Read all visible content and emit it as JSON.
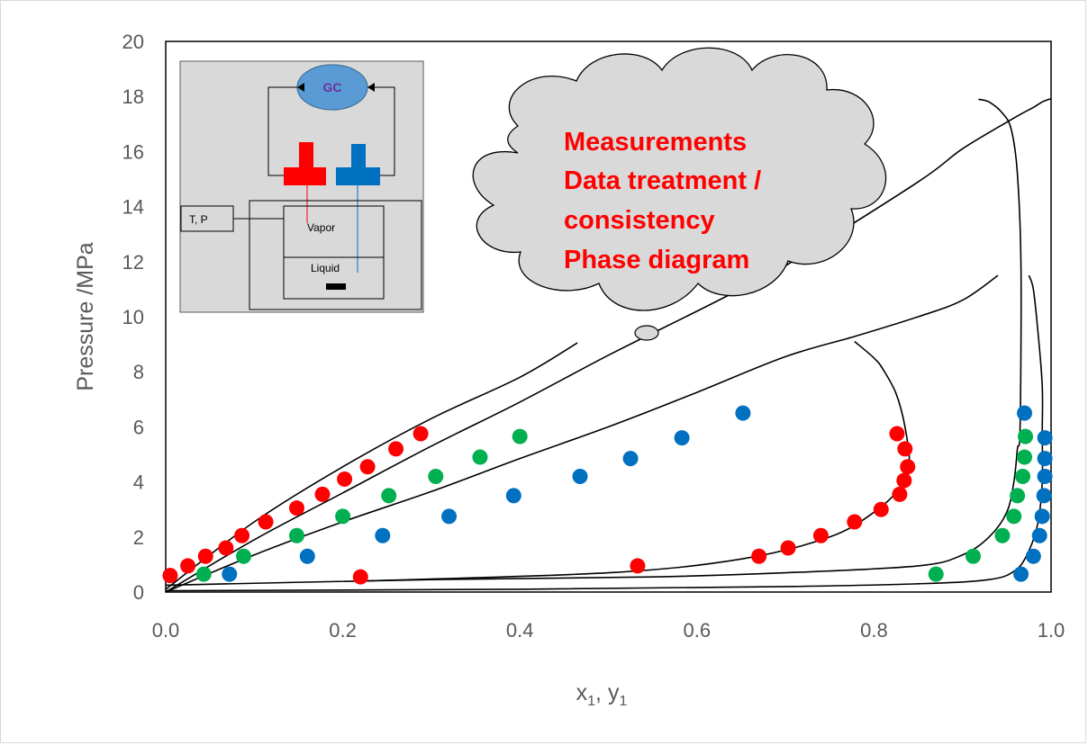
{
  "chart_data": {
    "type": "scatter",
    "title": "",
    "xlabel": "x",
    "xlabel_sub": "1",
    "xlabel_sep": ", y",
    "xlabel_sub2": "1",
    "ylabel": "Pressure /MPa",
    "xlim": [
      0,
      1
    ],
    "ylim": [
      0,
      20
    ],
    "xticks": [
      "0.0",
      "0.2",
      "0.4",
      "0.6",
      "0.8",
      "1.0"
    ],
    "yticks": [
      "0",
      "2",
      "4",
      "6",
      "8",
      "10",
      "12",
      "14",
      "16",
      "18",
      "20"
    ],
    "grid": false,
    "legend": "none",
    "colors": {
      "red": "#ff0000",
      "green": "#00b050",
      "blue": "#0070c0",
      "line": "#000000"
    },
    "series": [
      {
        "color": "red",
        "bubble": [
          [
            0.005,
            0.6
          ],
          [
            0.025,
            0.95
          ],
          [
            0.045,
            1.3
          ],
          [
            0.068,
            1.6
          ],
          [
            0.086,
            2.05
          ],
          [
            0.113,
            2.55
          ],
          [
            0.148,
            3.05
          ],
          [
            0.177,
            3.55
          ],
          [
            0.202,
            4.1
          ],
          [
            0.228,
            4.55
          ],
          [
            0.26,
            5.2
          ],
          [
            0.288,
            5.75
          ]
        ],
        "dew": [
          [
            0.22,
            0.55
          ],
          [
            0.533,
            0.95
          ],
          [
            0.67,
            1.3
          ],
          [
            0.703,
            1.6
          ],
          [
            0.74,
            2.05
          ],
          [
            0.778,
            2.55
          ],
          [
            0.808,
            3.0
          ],
          [
            0.829,
            3.55
          ],
          [
            0.834,
            4.05
          ],
          [
            0.838,
            4.55
          ],
          [
            0.835,
            5.2
          ],
          [
            0.826,
            5.75
          ]
        ]
      },
      {
        "color": "green",
        "bubble": [
          [
            0.043,
            0.65
          ],
          [
            0.088,
            1.3
          ],
          [
            0.148,
            2.05
          ],
          [
            0.2,
            2.75
          ],
          [
            0.252,
            3.5
          ],
          [
            0.305,
            4.2
          ],
          [
            0.355,
            4.9
          ],
          [
            0.4,
            5.65
          ]
        ],
        "dew": [
          [
            0.87,
            0.65
          ],
          [
            0.912,
            1.3
          ],
          [
            0.945,
            2.05
          ],
          [
            0.958,
            2.75
          ],
          [
            0.962,
            3.5
          ],
          [
            0.968,
            4.2
          ],
          [
            0.97,
            4.9
          ],
          [
            0.971,
            5.65
          ]
        ]
      },
      {
        "color": "blue",
        "bubble": [
          [
            0.072,
            0.65
          ],
          [
            0.16,
            1.3
          ],
          [
            0.245,
            2.05
          ],
          [
            0.32,
            2.75
          ],
          [
            0.393,
            3.5
          ],
          [
            0.468,
            4.2
          ],
          [
            0.525,
            4.85
          ],
          [
            0.583,
            5.6
          ],
          [
            0.652,
            6.5
          ]
        ],
        "dew": [
          [
            0.966,
            0.65
          ],
          [
            0.98,
            1.3
          ],
          [
            0.987,
            2.05
          ],
          [
            0.99,
            2.75
          ],
          [
            0.992,
            3.5
          ],
          [
            0.993,
            4.2
          ],
          [
            0.993,
            4.85
          ],
          [
            0.993,
            5.6
          ],
          [
            0.97,
            6.5
          ]
        ]
      }
    ],
    "curves": [
      {
        "name_hint": "red",
        "points": [
          [
            0.0,
            0.1
          ],
          [
            0.1,
            2.55
          ],
          [
            0.2,
            4.55
          ],
          [
            0.3,
            6.3
          ],
          [
            0.4,
            7.8
          ],
          [
            0.465,
            9.05
          ]
        ]
      },
      {
        "points": [
          [
            0.0,
            0.0
          ],
          [
            0.1,
            1.9
          ],
          [
            0.2,
            3.6
          ],
          [
            0.3,
            5.3
          ],
          [
            0.4,
            6.9
          ],
          [
            0.5,
            8.6
          ],
          [
            0.6,
            10.2
          ],
          [
            0.68,
            11.5
          ],
          [
            0.7,
            11.85
          ],
          [
            0.85,
            14.9
          ],
          [
            0.9,
            16.1
          ],
          [
            0.96,
            17.25
          ],
          [
            0.98,
            17.6
          ],
          [
            0.99,
            17.8
          ],
          [
            0.998,
            17.9
          ],
          [
            1.0,
            17.9
          ]
        ]
      },
      {
        "points": [
          [
            0.0,
            0.0
          ],
          [
            0.1,
            1.35
          ],
          [
            0.2,
            2.55
          ],
          [
            0.3,
            3.65
          ],
          [
            0.4,
            4.85
          ],
          [
            0.5,
            6.0
          ],
          [
            0.6,
            7.25
          ],
          [
            0.7,
            8.55
          ],
          [
            0.78,
            9.3
          ],
          [
            0.85,
            10.0
          ],
          [
            0.9,
            10.6
          ],
          [
            0.94,
            11.5
          ]
        ]
      },
      {
        "points": [
          [
            0.22,
            0.4
          ],
          [
            0.5,
            0.7
          ],
          [
            0.65,
            1.2
          ],
          [
            0.75,
            2.0
          ],
          [
            0.8,
            2.9
          ],
          [
            0.83,
            3.8
          ],
          [
            0.84,
            4.55
          ],
          [
            0.835,
            6.0
          ],
          [
            0.825,
            7.2
          ],
          [
            0.81,
            8.1
          ],
          [
            0.8,
            8.5
          ],
          [
            0.778,
            9.1
          ]
        ]
      },
      {
        "points": [
          [
            0.0,
            0.25
          ],
          [
            0.3,
            0.45
          ],
          [
            0.55,
            0.55
          ],
          [
            0.7,
            0.7
          ],
          [
            0.85,
            0.95
          ],
          [
            0.9,
            1.35
          ],
          [
            0.93,
            2.0
          ],
          [
            0.95,
            2.9
          ],
          [
            0.958,
            4.0
          ],
          [
            0.962,
            5.2
          ],
          [
            0.965,
            6.0
          ],
          [
            0.966,
            11.8
          ],
          [
            0.962,
            15.2
          ],
          [
            0.955,
            16.8
          ],
          [
            0.945,
            17.4
          ],
          [
            0.93,
            17.8
          ],
          [
            0.918,
            17.9
          ]
        ]
      },
      {
        "points": [
          [
            0.0,
            0.05
          ],
          [
            0.4,
            0.1
          ],
          [
            0.7,
            0.2
          ],
          [
            0.85,
            0.3
          ],
          [
            0.93,
            0.45
          ],
          [
            0.96,
            0.8
          ],
          [
            0.975,
            1.5
          ],
          [
            0.985,
            2.5
          ],
          [
            0.99,
            4.0
          ],
          [
            0.99,
            5.8
          ],
          [
            0.99,
            7.5
          ],
          [
            0.985,
            9.5
          ],
          [
            0.98,
            11.0
          ],
          [
            0.975,
            11.5
          ]
        ]
      }
    ]
  },
  "inset": {
    "gc_label": "GC",
    "tp_label": "T, P",
    "vapor_label": "Vapor",
    "liquid_label": "Liquid"
  },
  "callout": {
    "lines": [
      "Measurements",
      "Data treatment /",
      "consistency",
      "Phase diagram"
    ]
  }
}
